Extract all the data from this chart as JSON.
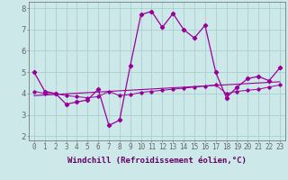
{
  "xlabel": "Windchill (Refroidissement éolien,°C)",
  "background_color": "#cce8e8",
  "grid_color": "#aacece",
  "line_color": "#990099",
  "xlim": [
    -0.5,
    23.5
  ],
  "ylim": [
    1.8,
    8.3
  ],
  "yticks": [
    2,
    3,
    4,
    5,
    6,
    7,
    8
  ],
  "xticks": [
    0,
    1,
    2,
    3,
    4,
    5,
    6,
    7,
    8,
    9,
    10,
    11,
    12,
    13,
    14,
    15,
    16,
    17,
    18,
    19,
    20,
    21,
    22,
    23
  ],
  "series1_x": [
    0,
    1,
    2,
    3,
    4,
    5,
    6,
    7,
    8,
    9,
    10,
    11,
    12,
    13,
    14,
    15,
    16,
    17,
    18,
    19,
    20,
    21,
    22,
    23
  ],
  "series1_y": [
    5.0,
    4.1,
    4.0,
    3.5,
    3.6,
    3.7,
    4.2,
    2.5,
    2.75,
    5.3,
    7.7,
    7.85,
    7.1,
    7.75,
    7.0,
    6.6,
    7.2,
    5.0,
    3.8,
    4.3,
    4.7,
    4.8,
    4.6,
    5.2
  ],
  "series2_x": [
    0,
    1,
    2,
    3,
    4,
    5,
    6,
    7,
    8,
    9,
    10,
    11,
    12,
    13,
    14,
    15,
    16,
    17,
    18,
    19,
    20,
    21,
    22,
    23
  ],
  "series2_y": [
    4.1,
    4.0,
    4.0,
    3.9,
    3.85,
    3.8,
    3.85,
    4.1,
    3.9,
    3.95,
    4.05,
    4.1,
    4.15,
    4.2,
    4.25,
    4.3,
    4.35,
    4.4,
    4.0,
    4.1,
    4.15,
    4.2,
    4.3,
    4.4
  ],
  "series3_x": [
    0,
    23
  ],
  "series3_y": [
    3.9,
    4.55
  ],
  "tick_fontsize": 5.5,
  "label_fontsize": 6.5
}
